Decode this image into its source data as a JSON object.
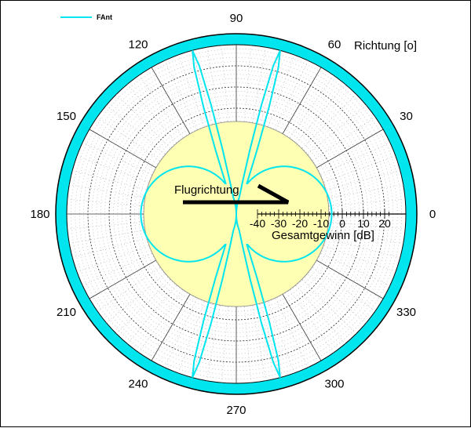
{
  "chart_data": {
    "type": "polar",
    "title": "",
    "angle_label": "Richtung [o]",
    "radial_label": "Gesamtgewinn [dB]",
    "radial_range": [
      -50,
      30
    ],
    "radial_ticks": [
      -40,
      -30,
      -20,
      -10,
      0,
      10,
      20
    ],
    "angle_ticks": [
      0,
      30,
      60,
      90,
      120,
      150,
      180,
      210,
      240,
      270,
      300,
      330
    ],
    "annotation": "Flugrichtung",
    "legend": {
      "position": "top-left",
      "entries": [
        "FAnt"
      ]
    },
    "series": [
      {
        "name": "FAnt",
        "color": "#00e5ee",
        "shape": "figure-eight lobes toward 0 and 180 degrees, narrow beams near 75/105/255/285 degrees",
        "lobe_peak_db": -5,
        "beam_peak_db": 30,
        "beam_angles_deg": [
          75,
          105,
          255,
          285
        ]
      }
    ],
    "colors": {
      "inner_disk": "#ffffb3",
      "outer_band": "#00e5ee",
      "series": "#00e5ee",
      "arrow": "#000000"
    }
  }
}
